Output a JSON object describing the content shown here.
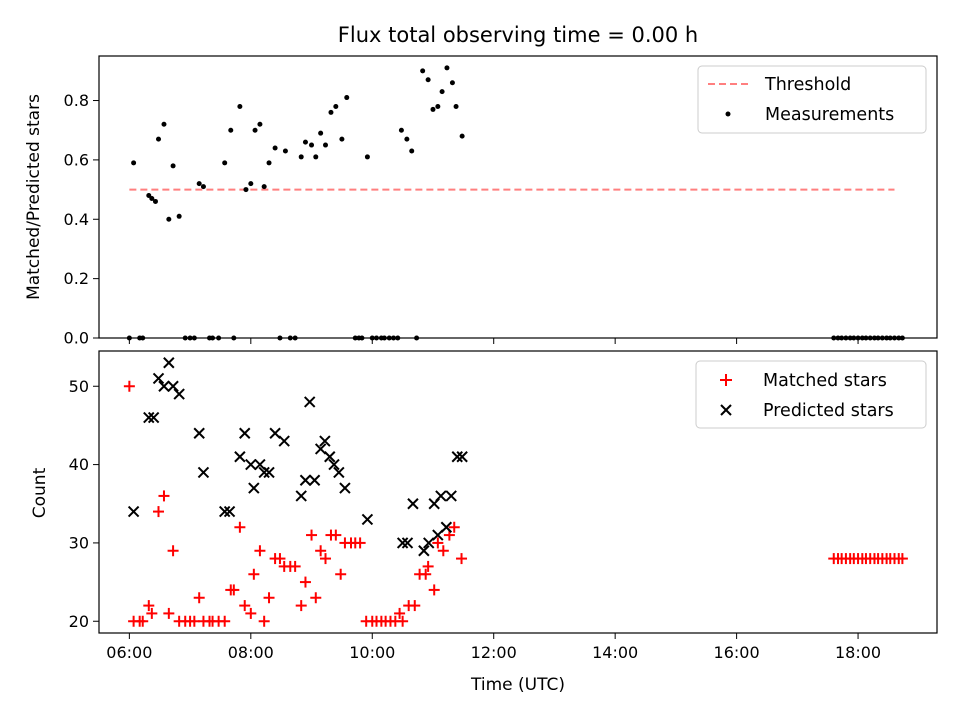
{
  "chart_data": [
    {
      "type": "scatter",
      "title": "Flux total observing time = 0.00 h",
      "xlabel": "",
      "ylabel": "Matched/Predicted stars",
      "x_unit": "hours UTC",
      "xlim": [
        5.5,
        19.3
      ],
      "ylim": [
        0,
        0.95
      ],
      "yticks": [
        0.0,
        0.2,
        0.4,
        0.6,
        0.8
      ],
      "ytick_labels": [
        "0.0",
        "0.2",
        "0.4",
        "0.6",
        "0.8"
      ],
      "legend_position": "top-right",
      "series": [
        {
          "name": "Threshold",
          "kind": "line",
          "style": "dashed",
          "color": "#ff7f7f",
          "points": [
            [
              6.0,
              0.5
            ],
            [
              18.6,
              0.5
            ]
          ]
        },
        {
          "name": "Measurements",
          "kind": "scatter",
          "marker": "dot",
          "color": "#000000",
          "points": [
            [
              6.0,
              0.0
            ],
            [
              6.07,
              0.59
            ],
            [
              6.17,
              0.0
            ],
            [
              6.22,
              0.0
            ],
            [
              6.32,
              0.48
            ],
            [
              6.37,
              0.47
            ],
            [
              6.43,
              0.46
            ],
            [
              6.48,
              0.67
            ],
            [
              6.57,
              0.72
            ],
            [
              6.65,
              0.4
            ],
            [
              6.72,
              0.58
            ],
            [
              6.82,
              0.41
            ],
            [
              6.92,
              0.0
            ],
            [
              7.0,
              0.0
            ],
            [
              7.07,
              0.0
            ],
            [
              7.15,
              0.52
            ],
            [
              7.22,
              0.51
            ],
            [
              7.32,
              0.0
            ],
            [
              7.37,
              0.0
            ],
            [
              7.47,
              0.0
            ],
            [
              7.57,
              0.59
            ],
            [
              7.67,
              0.7
            ],
            [
              7.72,
              0.0
            ],
            [
              7.82,
              0.78
            ],
            [
              7.92,
              0.5
            ],
            [
              8.0,
              0.52
            ],
            [
              8.07,
              0.7
            ],
            [
              8.15,
              0.72
            ],
            [
              8.22,
              0.51
            ],
            [
              8.3,
              0.59
            ],
            [
              8.4,
              0.64
            ],
            [
              8.48,
              0.0
            ],
            [
              8.57,
              0.63
            ],
            [
              8.65,
              0.0
            ],
            [
              8.73,
              0.0
            ],
            [
              8.83,
              0.61
            ],
            [
              8.9,
              0.66
            ],
            [
              9.0,
              0.65
            ],
            [
              9.07,
              0.61
            ],
            [
              9.15,
              0.69
            ],
            [
              9.23,
              0.65
            ],
            [
              9.32,
              0.76
            ],
            [
              9.4,
              0.78
            ],
            [
              9.5,
              0.67
            ],
            [
              9.58,
              0.81
            ],
            [
              9.72,
              0.0
            ],
            [
              9.78,
              0.0
            ],
            [
              9.83,
              0.0
            ],
            [
              9.92,
              0.61
            ],
            [
              10.0,
              0.0
            ],
            [
              10.07,
              0.0
            ],
            [
              10.15,
              0.0
            ],
            [
              10.2,
              0.0
            ],
            [
              10.28,
              0.0
            ],
            [
              10.35,
              0.0
            ],
            [
              10.42,
              0.0
            ],
            [
              10.48,
              0.7
            ],
            [
              10.57,
              0.67
            ],
            [
              10.65,
              0.63
            ],
            [
              10.73,
              0.0
            ],
            [
              10.83,
              0.9
            ],
            [
              10.92,
              0.87
            ],
            [
              11.0,
              0.77
            ],
            [
              11.08,
              0.78
            ],
            [
              11.15,
              0.83
            ],
            [
              11.23,
              0.91
            ],
            [
              11.32,
              0.86
            ],
            [
              11.38,
              0.78
            ],
            [
              11.48,
              0.68
            ],
            [
              17.6,
              0.0
            ],
            [
              17.67,
              0.0
            ],
            [
              17.73,
              0.0
            ],
            [
              17.8,
              0.0
            ],
            [
              17.87,
              0.0
            ],
            [
              17.93,
              0.0
            ],
            [
              18.0,
              0.0
            ],
            [
              18.07,
              0.0
            ],
            [
              18.13,
              0.0
            ],
            [
              18.2,
              0.0
            ],
            [
              18.27,
              0.0
            ],
            [
              18.33,
              0.0
            ],
            [
              18.4,
              0.0
            ],
            [
              18.47,
              0.0
            ],
            [
              18.53,
              0.0
            ],
            [
              18.6,
              0.0
            ],
            [
              18.67,
              0.0
            ],
            [
              18.73,
              0.0
            ]
          ]
        }
      ]
    },
    {
      "type": "scatter",
      "title": "",
      "xlabel": "Time (UTC)",
      "ylabel": "Count",
      "x_unit": "hours UTC",
      "xlim": [
        5.5,
        19.3
      ],
      "ylim": [
        18.5,
        54.5
      ],
      "xticks": [
        6,
        8,
        10,
        12,
        14,
        16,
        18
      ],
      "xtick_labels": [
        "06:00",
        "08:00",
        "10:00",
        "12:00",
        "14:00",
        "16:00",
        "18:00"
      ],
      "yticks": [
        20,
        30,
        40,
        50
      ],
      "ytick_labels": [
        "20",
        "30",
        "40",
        "50"
      ],
      "legend_position": "top-right",
      "series": [
        {
          "name": "Matched stars",
          "kind": "scatter",
          "marker": "plus",
          "color": "#ff0000",
          "points": [
            [
              6.0,
              50
            ],
            [
              6.07,
              20
            ],
            [
              6.17,
              20
            ],
            [
              6.22,
              20
            ],
            [
              6.32,
              22
            ],
            [
              6.37,
              21
            ],
            [
              6.48,
              34
            ],
            [
              6.57,
              36
            ],
            [
              6.65,
              21
            ],
            [
              6.72,
              29
            ],
            [
              6.82,
              20
            ],
            [
              6.92,
              20
            ],
            [
              7.0,
              20
            ],
            [
              7.07,
              20
            ],
            [
              7.15,
              23
            ],
            [
              7.22,
              20
            ],
            [
              7.32,
              20
            ],
            [
              7.37,
              20
            ],
            [
              7.47,
              20
            ],
            [
              7.57,
              20
            ],
            [
              7.67,
              24
            ],
            [
              7.72,
              24
            ],
            [
              7.82,
              32
            ],
            [
              7.9,
              22
            ],
            [
              8.0,
              21
            ],
            [
              8.05,
              26
            ],
            [
              8.15,
              29
            ],
            [
              8.22,
              20
            ],
            [
              8.3,
              23
            ],
            [
              8.4,
              28
            ],
            [
              8.48,
              28
            ],
            [
              8.55,
              27
            ],
            [
              8.65,
              27
            ],
            [
              8.73,
              27
            ],
            [
              8.83,
              22
            ],
            [
              8.9,
              25
            ],
            [
              9.0,
              31
            ],
            [
              9.07,
              23
            ],
            [
              9.15,
              29
            ],
            [
              9.23,
              28
            ],
            [
              9.32,
              31
            ],
            [
              9.4,
              31
            ],
            [
              9.48,
              26
            ],
            [
              9.55,
              30
            ],
            [
              9.65,
              30
            ],
            [
              9.72,
              30
            ],
            [
              9.8,
              30
            ],
            [
              9.9,
              20
            ],
            [
              10.0,
              20
            ],
            [
              10.07,
              20
            ],
            [
              10.15,
              20
            ],
            [
              10.22,
              20
            ],
            [
              10.3,
              20
            ],
            [
              10.38,
              20
            ],
            [
              10.45,
              21
            ],
            [
              10.5,
              20
            ],
            [
              10.6,
              22
            ],
            [
              10.7,
              22
            ],
            [
              10.78,
              26
            ],
            [
              10.88,
              26
            ],
            [
              10.92,
              27
            ],
            [
              11.02,
              24
            ],
            [
              11.08,
              30
            ],
            [
              11.17,
              29
            ],
            [
              11.27,
              31
            ],
            [
              11.35,
              32
            ],
            [
              11.47,
              28
            ],
            [
              17.6,
              28
            ],
            [
              17.67,
              28
            ],
            [
              17.73,
              28
            ],
            [
              17.8,
              28
            ],
            [
              17.87,
              28
            ],
            [
              17.93,
              28
            ],
            [
              18.0,
              28
            ],
            [
              18.07,
              28
            ],
            [
              18.13,
              28
            ],
            [
              18.2,
              28
            ],
            [
              18.27,
              28
            ],
            [
              18.33,
              28
            ],
            [
              18.4,
              28
            ],
            [
              18.47,
              28
            ],
            [
              18.53,
              28
            ],
            [
              18.6,
              28
            ],
            [
              18.67,
              28
            ],
            [
              18.73,
              28
            ]
          ]
        },
        {
          "name": "Predicted stars",
          "kind": "scatter",
          "marker": "x",
          "color": "#000000",
          "points": [
            [
              6.07,
              34
            ],
            [
              6.32,
              46
            ],
            [
              6.4,
              46
            ],
            [
              6.48,
              51
            ],
            [
              6.57,
              50
            ],
            [
              6.65,
              53
            ],
            [
              6.72,
              50
            ],
            [
              6.82,
              49
            ],
            [
              7.15,
              44
            ],
            [
              7.22,
              39
            ],
            [
              7.57,
              34
            ],
            [
              7.65,
              34
            ],
            [
              7.82,
              41
            ],
            [
              7.9,
              44
            ],
            [
              8.0,
              40
            ],
            [
              8.05,
              37
            ],
            [
              8.15,
              40
            ],
            [
              8.22,
              39
            ],
            [
              8.3,
              39
            ],
            [
              8.4,
              44
            ],
            [
              8.55,
              43
            ],
            [
              8.83,
              36
            ],
            [
              8.9,
              38
            ],
            [
              8.97,
              48
            ],
            [
              9.05,
              38
            ],
            [
              9.15,
              42
            ],
            [
              9.22,
              43
            ],
            [
              9.3,
              41
            ],
            [
              9.37,
              40
            ],
            [
              9.45,
              39
            ],
            [
              9.55,
              37
            ],
            [
              9.92,
              33
            ],
            [
              10.5,
              30
            ],
            [
              10.58,
              30
            ],
            [
              10.67,
              35
            ],
            [
              10.85,
              29
            ],
            [
              10.93,
              30
            ],
            [
              11.02,
              35
            ],
            [
              11.08,
              31
            ],
            [
              11.13,
              36
            ],
            [
              11.22,
              32
            ],
            [
              11.3,
              36
            ],
            [
              11.4,
              41
            ],
            [
              11.48,
              41
            ]
          ]
        }
      ]
    }
  ]
}
